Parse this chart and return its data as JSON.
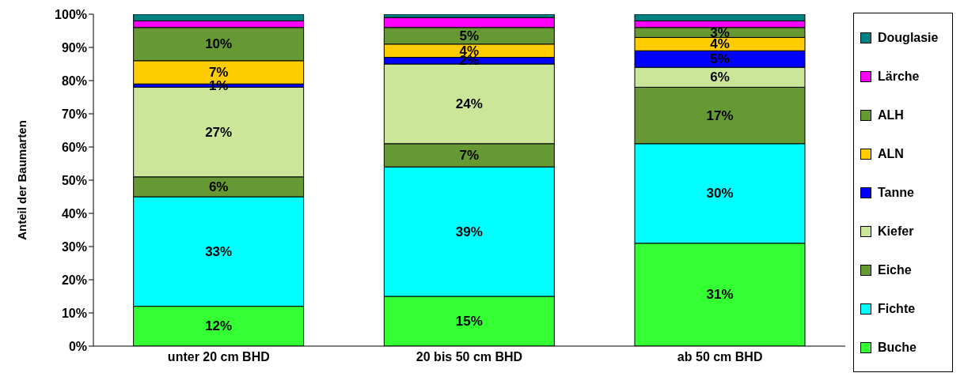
{
  "chart_data": {
    "type": "bar",
    "stacked": true,
    "ylabel": "Anteil der Baumarten",
    "categories": [
      "unter 20 cm BHD",
      "20 bis 50 cm BHD",
      "ab 50 cm BHD"
    ],
    "ylim": [
      0,
      100
    ],
    "yticks": [
      {
        "value": 0,
        "label": "0%"
      },
      {
        "value": 10,
        "label": "10%"
      },
      {
        "value": 20,
        "label": "20%"
      },
      {
        "value": 30,
        "label": "30%"
      },
      {
        "value": 40,
        "label": "40%"
      },
      {
        "value": 50,
        "label": "50%"
      },
      {
        "value": 60,
        "label": "60%"
      },
      {
        "value": 70,
        "label": "70%"
      },
      {
        "value": 80,
        "label": "80%"
      },
      {
        "value": 90,
        "label": "90%"
      },
      {
        "value": 100,
        "label": "100%"
      }
    ],
    "legend": "right",
    "grid": false,
    "series": [
      {
        "name": "Buche",
        "color": "#33ff33",
        "values": [
          12,
          15,
          31
        ],
        "value_labels": [
          "12%",
          "15%",
          "31%"
        ]
      },
      {
        "name": "Fichte",
        "color": "#00ffff",
        "values": [
          33,
          39,
          30
        ],
        "value_labels": [
          "33%",
          "39%",
          "30%"
        ]
      },
      {
        "name": "Eiche",
        "color": "#669933",
        "values": [
          6,
          7,
          17
        ],
        "value_labels": [
          "6%",
          "7%",
          "17%"
        ]
      },
      {
        "name": "Kiefer",
        "color": "#cce699",
        "values": [
          27,
          24,
          6
        ],
        "value_labels": [
          "27%",
          "24%",
          "6%"
        ]
      },
      {
        "name": "Tanne",
        "color": "#0000ff",
        "values": [
          1,
          2,
          5
        ],
        "value_labels": [
          "1%",
          "2%",
          "5%"
        ]
      },
      {
        "name": "ALN",
        "color": "#ffcc00",
        "values": [
          7,
          4,
          4
        ],
        "value_labels": [
          "7%",
          "4%",
          "4%"
        ]
      },
      {
        "name": "ALH",
        "color": "#669933",
        "values": [
          10,
          5,
          3
        ],
        "value_labels": [
          "10%",
          "5%",
          "3%"
        ]
      },
      {
        "name": "Lärche",
        "color": "#ff00ff",
        "values": [
          2,
          3,
          2
        ],
        "value_labels": [
          null,
          null,
          null
        ]
      },
      {
        "name": "Douglasie",
        "color": "#008080",
        "values": [
          2,
          1,
          2
        ],
        "value_labels": [
          null,
          null,
          null
        ]
      }
    ]
  }
}
